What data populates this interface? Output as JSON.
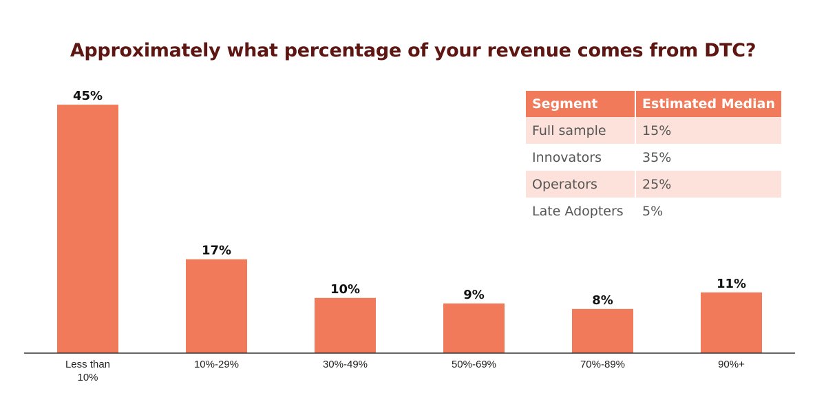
{
  "chart_data": {
    "type": "bar",
    "title": "Approximately what percentage of your revenue comes from DTC?",
    "categories": [
      "Less than 10%",
      "10%-29%",
      "30%-49%",
      "50%-69%",
      "70%-89%",
      "90%+"
    ],
    "values": [
      45,
      17,
      10,
      9,
      8,
      11
    ],
    "value_labels": [
      "45%",
      "17%",
      "10%",
      "9%",
      "8%",
      "11%"
    ],
    "ylim": [
      0,
      50
    ],
    "grid": false,
    "bar_color": "#f07a5a"
  },
  "table": {
    "headers": [
      "Segment",
      "Estimated Median"
    ],
    "rows": [
      [
        "Full sample",
        "15%"
      ],
      [
        "Innovators",
        "35%"
      ],
      [
        "Operators",
        "25%"
      ],
      [
        "Late Adopters",
        "5%"
      ]
    ],
    "header_color": "#f07a5a",
    "shade_color": "#fde2db"
  }
}
